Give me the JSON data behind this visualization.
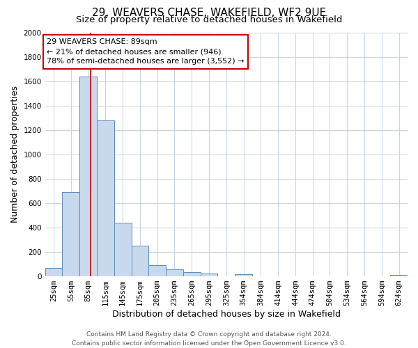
{
  "title": "29, WEAVERS CHASE, WAKEFIELD, WF2 9UE",
  "subtitle": "Size of property relative to detached houses in Wakefield",
  "xlabel": "Distribution of detached houses by size in Wakefield",
  "ylabel": "Number of detached properties",
  "bar_labels": [
    "25sqm",
    "55sqm",
    "85sqm",
    "115sqm",
    "145sqm",
    "175sqm",
    "205sqm",
    "235sqm",
    "265sqm",
    "295sqm",
    "325sqm",
    "354sqm",
    "384sqm",
    "414sqm",
    "444sqm",
    "474sqm",
    "504sqm",
    "534sqm",
    "564sqm",
    "594sqm",
    "624sqm"
  ],
  "bar_values": [
    65,
    690,
    1640,
    1280,
    435,
    250,
    90,
    55,
    30,
    20,
    0,
    15,
    0,
    0,
    0,
    0,
    0,
    0,
    0,
    0,
    10
  ],
  "bar_color": "#c9d9ed",
  "bar_edge_color": "#5b8db8",
  "background_color": "#ffffff",
  "grid_color": "#c8d4e3",
  "vline_color": "#cc0000",
  "vline_pos": 2.133,
  "ann_line1": "29 WEAVERS CHASE: 89sqm",
  "ann_line2": "← 21% of detached houses are smaller (946)",
  "ann_line3": "78% of semi-detached houses are larger (3,552) →",
  "ylim": [
    0,
    2000
  ],
  "yticks": [
    0,
    200,
    400,
    600,
    800,
    1000,
    1200,
    1400,
    1600,
    1800,
    2000
  ],
  "footer_line1": "Contains HM Land Registry data © Crown copyright and database right 2024.",
  "footer_line2": "Contains public sector information licensed under the Open Government Licence v3.0.",
  "title_fontsize": 11,
  "subtitle_fontsize": 9.5,
  "label_fontsize": 9,
  "tick_fontsize": 7.5,
  "ann_fontsize": 8,
  "footer_fontsize": 6.5
}
